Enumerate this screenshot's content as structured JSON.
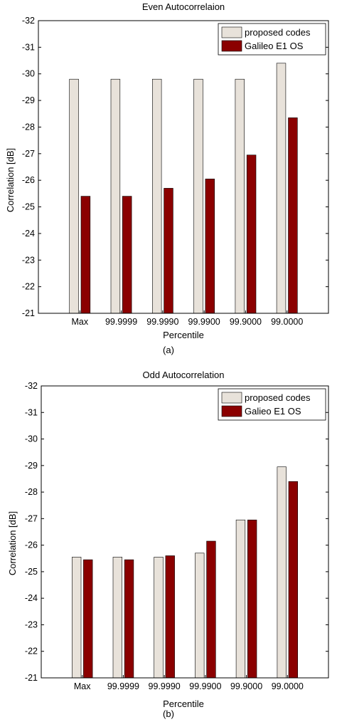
{
  "colors": {
    "proposed": "#e8e2da",
    "galileo": "#8b0000",
    "axis": "#000000",
    "background": "#ffffff"
  },
  "chart_data": [
    {
      "type": "bar",
      "title": "Even Autocorrelaion",
      "xlabel": "Percentile",
      "ylabel": "Correlation [dB]",
      "caption": "(a)",
      "categories": [
        "Max",
        "99.9999",
        "99.9990",
        "99.9900",
        "99.9000",
        "99.0000"
      ],
      "y_ticks": [
        "-32",
        "-31",
        "-30",
        "-29",
        "-28",
        "-27",
        "-26",
        "-25",
        "-24",
        "-23",
        "-22",
        "-21"
      ],
      "ylim": [
        -21,
        -32
      ],
      "y_reversed": true,
      "legend_position": "top-right",
      "grid": false,
      "series": [
        {
          "name": "proposed codes",
          "values": [
            -29.8,
            -29.8,
            -29.8,
            -29.8,
            -29.8,
            -30.4
          ]
        },
        {
          "name": "Galileo E1 OS",
          "values": [
            -25.4,
            -25.4,
            -25.7,
            -26.05,
            -26.95,
            -28.35
          ]
        }
      ]
    },
    {
      "type": "bar",
      "title": "Odd Autocorrelation",
      "xlabel": "Percentile",
      "ylabel": "Correlation [dB]",
      "caption": "(b)",
      "categories": [
        "Max",
        "99.9999",
        "99.9990",
        "99.9900",
        "99.9000",
        "99.0000"
      ],
      "y_ticks": [
        "-32",
        "-31",
        "-30",
        "-29",
        "-28",
        "-27",
        "-26",
        "-25",
        "-24",
        "-23",
        "-22",
        "-21"
      ],
      "ylim": [
        -21,
        -32
      ],
      "y_reversed": true,
      "legend_position": "top-right",
      "grid": false,
      "series": [
        {
          "name": "proposed codes",
          "values": [
            -25.55,
            -25.55,
            -25.55,
            -25.7,
            -26.95,
            -28.95
          ]
        },
        {
          "name": "Galieo E1 OS",
          "values": [
            -25.45,
            -25.45,
            -25.6,
            -26.15,
            -26.95,
            -28.4
          ]
        }
      ]
    }
  ]
}
